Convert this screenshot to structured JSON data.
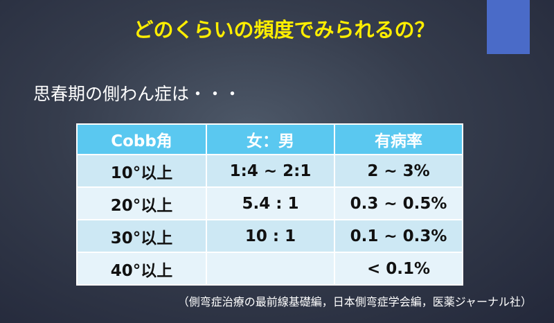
{
  "slide": {
    "title": "どのくらいの頻度でみられるの？",
    "subtitle": "思春期の側わん症は・・・",
    "table": {
      "header": [
        "Cobb角",
        "女：男",
        "有病率"
      ],
      "rows": [
        {
          "cobb": "10°以上",
          "ratio": "1:4 ~ 2:1",
          "rate": "2 ~ 3%"
        },
        {
          "cobb": "20°以上",
          "ratio": "5.4 : 1",
          "rate": "0.3 ~ 0.5%"
        },
        {
          "cobb": "30°以上",
          "ratio": "10 : 1",
          "rate": "0.1 ~ 0.3%"
        },
        {
          "cobb": "40°以上",
          "rate": "< 0.1%"
        }
      ]
    },
    "source": "（側弯症治療の最前線基礎編，日本側弯症学会編，医薬ジャーナル社）"
  }
}
